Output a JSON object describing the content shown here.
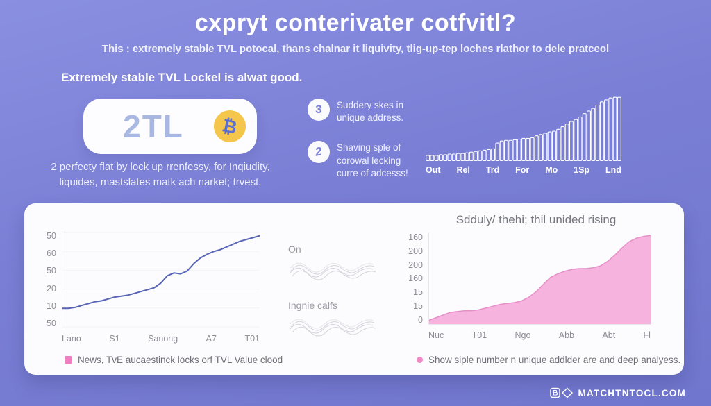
{
  "header": {
    "title": "cxpryt conterivater cotfvitl?",
    "subtitle": "This : extremely stable TVL potocal, thans chalnar it liquivity, tlig-up-tep loches rlathor to dele pratceol"
  },
  "left_panel": {
    "heading": "Extremely stable TVL Lockel is alwat good.",
    "badge_value": "2TL",
    "coin_symbol": "₿",
    "description": "2 perfecty flat by lock up rrenfessy, for Inqiudity, liquides, mastslates matk ach narket; trvest."
  },
  "key_points": [
    {
      "number": "3",
      "text": "Suddery skes in unique address."
    },
    {
      "number": "2",
      "text": "Shaving sple of corowal lecking curre of adcesss!"
    }
  ],
  "waves": {
    "label_1": "On",
    "label_2": "Ingnie calfs"
  },
  "footer": {
    "brand": "MATCHTNTOCL.COM"
  },
  "colors": {
    "background": "#7a7fd5",
    "card": "#fcfcfe",
    "bar_outline": "#ffffff",
    "line": "#5865b5",
    "area_fill": "#f6b3de",
    "area_stroke": "#e58fc8",
    "legend_pink": "#ee7fc0",
    "badge_text": "#a9b7e3",
    "coin_yellow": "#f4c64c",
    "axis_text": "#8d8d96"
  },
  "chart_data": [
    {
      "type": "bar",
      "title": "",
      "style": "white-outlined ascending bars, no axis labels on y",
      "categories": [
        "Out",
        "Rel",
        "Trd",
        "For",
        "Mo",
        "1Sp",
        "Lnd"
      ],
      "values": [
        8,
        8,
        8,
        9,
        9,
        10,
        10,
        11,
        11,
        12,
        13,
        14,
        15,
        16,
        17,
        18,
        27,
        30,
        31,
        31,
        32,
        33,
        34,
        34,
        35,
        38,
        40,
        42,
        44,
        45,
        48,
        52,
        56,
        60,
        63,
        67,
        72,
        76,
        80,
        85,
        90,
        93,
        96,
        97,
        97
      ],
      "ylim": [
        0,
        100
      ],
      "value_unit": "percent-of-plot-height"
    },
    {
      "type": "line",
      "title": "",
      "y_tick_labels": [
        "50",
        "60",
        "50",
        "20",
        "10",
        "50"
      ],
      "categories": [
        "Lano",
        "S1",
        "Sanong",
        "A7",
        "T01"
      ],
      "values": [
        20,
        20,
        21,
        23,
        25,
        27,
        28,
        30,
        32,
        33,
        34,
        36,
        38,
        40,
        42,
        47,
        55,
        58,
        57,
        60,
        68,
        74,
        78,
        81,
        83,
        86,
        89,
        92,
        94,
        96,
        98
      ],
      "ylim": [
        0,
        100
      ],
      "value_unit": "percent-of-plot-height",
      "grid": "faint horizontal",
      "legend": "News, TvE aucaestinck locks orf TVL Value clood"
    },
    {
      "type": "area",
      "title": "Sdduly/ thehi; thil unided rising",
      "y_tick_labels": [
        "160",
        "200",
        "200",
        "160",
        "15",
        "15",
        "0"
      ],
      "categories": [
        "Nuc",
        "T01",
        "Ngo",
        "Abb",
        "Abt",
        "Fl"
      ],
      "values": [
        4,
        7,
        10,
        13,
        14,
        15,
        15,
        16,
        18,
        20,
        22,
        23,
        24,
        26,
        30,
        36,
        44,
        52,
        56,
        59,
        61,
        62,
        62,
        63,
        65,
        70,
        77,
        85,
        92,
        96,
        98,
        99
      ],
      "ylim": [
        0,
        100
      ],
      "value_unit": "percent-of-plot-height",
      "grid": "off",
      "legend": "Show siple number n unique addlder are and deep analyess."
    }
  ]
}
